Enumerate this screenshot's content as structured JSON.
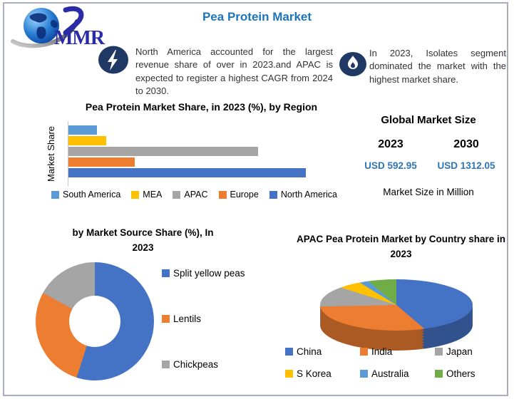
{
  "page": {
    "title": "Pea Protein Market"
  },
  "logo": {
    "text": "MMR"
  },
  "colors": {
    "title_blue": "#1B75BC",
    "icon_navy": "#1F3864",
    "value_blue": "#2E75B6",
    "frame_border": "#A6AEC0"
  },
  "callouts": [
    {
      "icon": "lightning-icon",
      "text": "North America accounted for the largest revenue share of over in 2023.and APAC is expected to register a highest CAGR from 2024 to 2030."
    },
    {
      "icon": "flame-icon",
      "text": "In 2023, Isolates segment dominated the market with the highest market share."
    }
  ],
  "market_size": {
    "heading": "Global Market Size",
    "year_left": "2023",
    "year_right": "2030",
    "value_left": "USD 592.95",
    "value_right": "USD 1312.05",
    "note": "Market Size in Million"
  },
  "chart_data": [
    {
      "id": "region_bar",
      "type": "bar",
      "orientation": "horizontal",
      "title": "Pea Protein Market Share, in 2023 (%), by Region",
      "ylabel": "Market Share",
      "xlabel": "",
      "categories": [
        "South America",
        "MEA",
        "APAC",
        "Europe",
        "North America"
      ],
      "values": [
        12,
        16,
        80,
        28,
        100
      ],
      "value_note": "relative bar lengths, % of longest bar; axis unlabeled",
      "colors": [
        "#5B9BD5",
        "#FFC000",
        "#A5A5A5",
        "#ED7D31",
        "#4472C4"
      ],
      "legend_position": "bottom",
      "grid": false
    },
    {
      "id": "source_donut",
      "type": "pie",
      "subtype": "donut",
      "title": "by Market Source Share (%), In 2023",
      "labels": [
        "Split yellow peas",
        "Lentils",
        "Chickpeas"
      ],
      "values": [
        55,
        28,
        17
      ],
      "colors": [
        "#4472C4",
        "#ED7D31",
        "#A5A5A5"
      ],
      "legend_position": "right"
    },
    {
      "id": "apac_pie",
      "type": "pie",
      "subtype": "pie3d",
      "title": "APAC Pea Protein Market by Country share in 2023",
      "labels": [
        "China",
        "India",
        "Japan",
        "S Korea",
        "Australia",
        "Others"
      ],
      "values": [
        44,
        30,
        13,
        5,
        2,
        6
      ],
      "colors": [
        "#4472C4",
        "#ED7D31",
        "#A5A5A5",
        "#FFC000",
        "#5B9BD5",
        "#70AD47"
      ],
      "legend_position": "bottom"
    }
  ]
}
